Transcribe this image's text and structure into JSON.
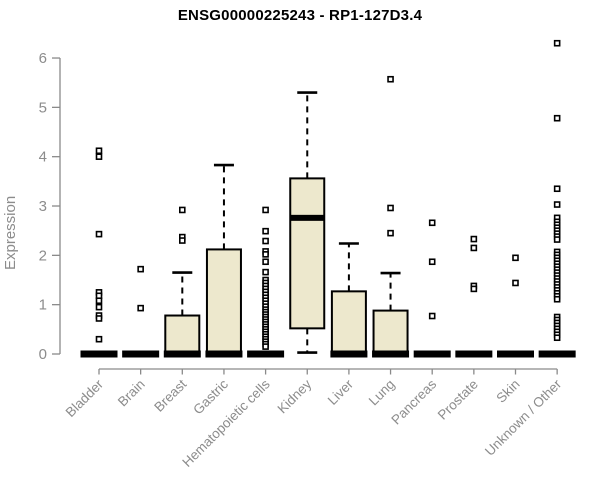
{
  "title": "ENSG00000225243 - RP1-127D3.4",
  "y_axis": {
    "label": "Expression",
    "tick_labels": [
      "0",
      "1",
      "2",
      "3",
      "4",
      "5",
      "6"
    ]
  },
  "colors": {
    "box_fill": "#ede8cd",
    "box_stroke": "#000000",
    "median": "#000000",
    "outlier_stroke": "#000000",
    "outlier_fill": "#ffffff",
    "axis_line": "#8a8a8a",
    "axis_text": "#8c8c8c",
    "title_text": "#000000"
  },
  "chart_data": {
    "type": "boxplot",
    "title": "ENSG00000225243 - RP1-127D3.4",
    "xlabel": "",
    "ylabel": "Expression",
    "ylim": [
      0,
      6
    ],
    "yticks": [
      0,
      1,
      2,
      3,
      4,
      5,
      6
    ],
    "grid": false,
    "legend": "none",
    "categories": [
      "Bladder",
      "Brain",
      "Breast",
      "Gastric",
      "Hematopoietic cells",
      "Kidney",
      "Liver",
      "Lung",
      "Pancreas",
      "Prostate",
      "Skin",
      "Unknown / Other"
    ],
    "series": [
      {
        "label": "Bladder",
        "q1": 0,
        "median": 0,
        "q3": 0,
        "whisker_low": 0,
        "whisker_high": 0,
        "outliers": [
          4.12,
          4.0,
          2.43,
          1.25,
          1.18,
          1.08,
          0.95,
          0.78,
          0.72,
          0.3
        ]
      },
      {
        "label": "Brain",
        "q1": 0,
        "median": 0,
        "q3": 0,
        "whisker_low": 0,
        "whisker_high": 0,
        "outliers": [
          1.72,
          0.93
        ]
      },
      {
        "label": "Breast",
        "q1": 0,
        "median": 0,
        "q3": 0.78,
        "whisker_low": 0,
        "whisker_high": 1.65,
        "outliers": [
          2.92,
          2.37,
          2.3
        ]
      },
      {
        "label": "Gastric",
        "q1": 0,
        "median": 0,
        "q3": 2.12,
        "whisker_low": 0,
        "whisker_high": 3.83,
        "outliers": []
      },
      {
        "label": "Hematopoietic cells",
        "q1": 0,
        "median": 0,
        "q3": 0,
        "whisker_low": 0,
        "whisker_high": 0,
        "outliers": [
          2.92,
          2.49,
          2.29,
          2.08,
          2.02,
          1.87,
          1.66,
          1.5,
          1.44,
          1.38,
          1.32,
          1.26,
          1.2,
          1.14,
          1.08,
          1.02,
          0.96,
          0.9,
          0.85,
          0.8,
          0.75,
          0.7,
          0.65,
          0.6,
          0.55,
          0.5,
          0.45,
          0.4,
          0.35,
          0.3,
          0.25,
          0.2,
          0.15
        ]
      },
      {
        "label": "Kidney",
        "q1": 0.52,
        "median": 2.76,
        "q3": 3.56,
        "whisker_low": 0.03,
        "whisker_high": 5.3,
        "outliers": []
      },
      {
        "label": "Liver",
        "q1": 0,
        "median": 0,
        "q3": 1.27,
        "whisker_low": 0,
        "whisker_high": 2.24,
        "outliers": []
      },
      {
        "label": "Lung",
        "q1": 0,
        "median": 0,
        "q3": 0.88,
        "whisker_low": 0,
        "whisker_high": 1.64,
        "outliers": [
          5.57,
          2.96,
          2.45
        ]
      },
      {
        "label": "Pancreas",
        "q1": 0,
        "median": 0,
        "q3": 0,
        "whisker_low": 0,
        "whisker_high": 0,
        "outliers": [
          2.66,
          1.87,
          0.77
        ]
      },
      {
        "label": "Prostate",
        "q1": 0,
        "median": 0,
        "q3": 0,
        "whisker_low": 0,
        "whisker_high": 0,
        "outliers": [
          2.33,
          2.15,
          1.38,
          1.32
        ]
      },
      {
        "label": "Skin",
        "q1": 0,
        "median": 0,
        "q3": 0,
        "whisker_low": 0,
        "whisker_high": 0,
        "outliers": [
          1.95,
          1.44
        ]
      },
      {
        "label": "Unknown / Other",
        "q1": 0,
        "median": 0,
        "q3": 0,
        "whisker_low": 0,
        "whisker_high": 0,
        "outliers": [
          6.3,
          4.78,
          3.35,
          3.03,
          2.76,
          2.68,
          2.62,
          2.56,
          2.5,
          2.44,
          2.38,
          2.32,
          2.07,
          2.01,
          1.95,
          1.89,
          1.83,
          1.77,
          1.71,
          1.65,
          1.59,
          1.53,
          1.47,
          1.41,
          1.35,
          1.29,
          1.23,
          1.17,
          1.11,
          0.75,
          0.69,
          0.63,
          0.57,
          0.51,
          0.45,
          0.39,
          0.33
        ]
      }
    ]
  }
}
